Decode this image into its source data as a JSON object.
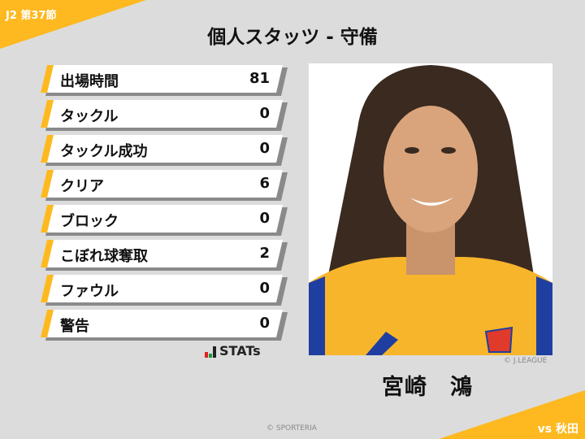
{
  "header": {
    "round": "J2 第37節",
    "title": "個人スタッツ - 守備",
    "opponent": "vs 秋田"
  },
  "stats": [
    {
      "label": "出場時間",
      "value": "81"
    },
    {
      "label": "タックル",
      "value": "0"
    },
    {
      "label": "タックル成功",
      "value": "0"
    },
    {
      "label": "クリア",
      "value": "6"
    },
    {
      "label": "ブロック",
      "value": "0"
    },
    {
      "label": "こぼれ球奪取",
      "value": "2"
    },
    {
      "label": "ファウル",
      "value": "0"
    },
    {
      "label": "警告",
      "value": "0"
    }
  ],
  "brand": {
    "logo_text": "STATs"
  },
  "player": {
    "name": "宮崎　鴻",
    "photo_credit": "© J.LEAGUE"
  },
  "footer": {
    "credit": "© SPORTERIA"
  },
  "colors": {
    "accent": "#fdb91f",
    "background": "#dcdcdc",
    "shirt": "#f7b52c",
    "shirt_trim": "#1f3fa0"
  }
}
